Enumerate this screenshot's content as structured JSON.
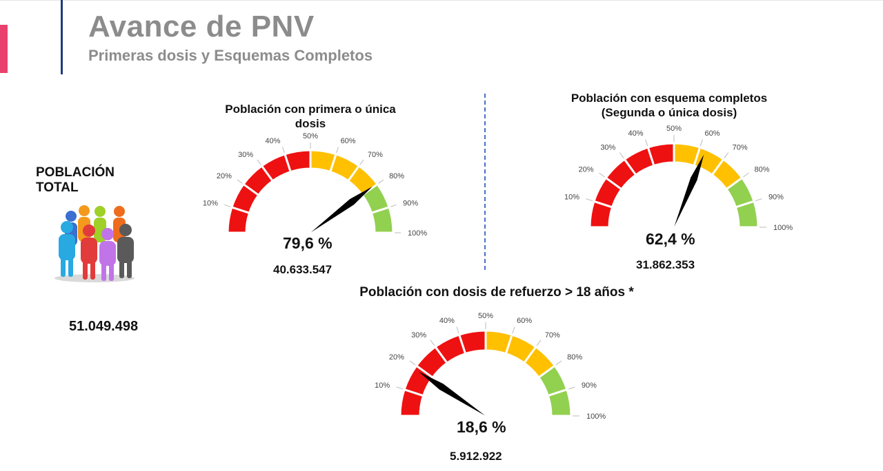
{
  "header": {
    "title": "Avance de PNV",
    "subtitle": "Primeras dosis y Esquemas Completos"
  },
  "poblacion_total": {
    "label": "POBLACIÓN TOTAL",
    "value": "51.049.498",
    "icon": "people-group-icon"
  },
  "colors": {
    "red": "#ee1111",
    "yellow": "#ffc000",
    "green": "#92d050",
    "needle": "#000000",
    "title_gray": "#8c8c8c",
    "accent": "#e8416d",
    "rule_blue": "#1f3b7a"
  },
  "chart_data": [
    {
      "type": "gauge",
      "title": "Población con primera o única dosis",
      "ticks": [
        "10%",
        "20%",
        "30%",
        "40%",
        "50%",
        "60%",
        "70%",
        "80%",
        "90%",
        "100%"
      ],
      "value": 79.6,
      "value_label": "79,6 %",
      "count": "40.633.547",
      "range": [
        0,
        100
      ],
      "bands": [
        {
          "from": 0,
          "to": 50,
          "color": "red"
        },
        {
          "from": 50,
          "to": 80,
          "color": "yellow"
        },
        {
          "from": 80,
          "to": 100,
          "color": "green"
        }
      ]
    },
    {
      "type": "gauge",
      "title": "Población con esquema completos (Segunda o única dosis)",
      "title_lines": [
        "Población con esquema completos",
        "(Segunda o única dosis)"
      ],
      "ticks": [
        "10%",
        "20%",
        "30%",
        "40%",
        "50%",
        "60%",
        "70%",
        "80%",
        "90%",
        "100%"
      ],
      "value": 62.4,
      "value_label": "62,4 %",
      "count": "31.862.353",
      "range": [
        0,
        100
      ],
      "bands": [
        {
          "from": 0,
          "to": 50,
          "color": "red"
        },
        {
          "from": 50,
          "to": 80,
          "color": "yellow"
        },
        {
          "from": 80,
          "to": 100,
          "color": "green"
        }
      ]
    },
    {
      "type": "gauge",
      "title": "Población con dosis de refuerzo > 18 años *",
      "ticks": [
        "10%",
        "20%",
        "30%",
        "40%",
        "50%",
        "60%",
        "70%",
        "80%",
        "90%",
        "100%"
      ],
      "value": 18.6,
      "value_label": "18,6 %",
      "count": "5.912.922",
      "range": [
        0,
        100
      ],
      "bands": [
        {
          "from": 0,
          "to": 50,
          "color": "red"
        },
        {
          "from": 50,
          "to": 80,
          "color": "yellow"
        },
        {
          "from": 80,
          "to": 100,
          "color": "green"
        }
      ]
    }
  ]
}
